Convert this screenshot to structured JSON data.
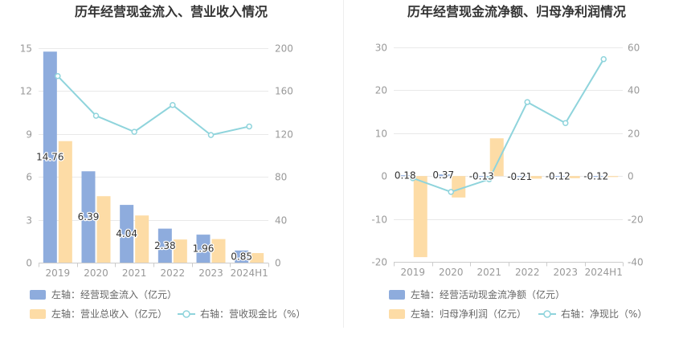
{
  "chart_data": [
    {
      "type": "bar",
      "title": "历年经营现金流入、营业收入情况",
      "categories": [
        "2019",
        "2020",
        "2021",
        "2022",
        "2023",
        "2024H1"
      ],
      "y_left": {
        "ticks": [
          0,
          3,
          6,
          9,
          12,
          15
        ],
        "ylim": [
          0,
          15
        ]
      },
      "y_right": {
        "ticks": [
          0,
          40,
          80,
          120,
          160,
          200
        ],
        "ylim": [
          0,
          200
        ]
      },
      "grid": true,
      "legend_position": "bottom-left",
      "series": [
        {
          "name": "左轴：经营现金流入（亿元）",
          "type": "bar",
          "axis": "left",
          "color": "#8EACDD",
          "data_labels": true,
          "values": [
            14.76,
            6.39,
            4.04,
            2.38,
            1.96,
            0.85
          ]
        },
        {
          "name": "左轴：营业总收入（亿元）",
          "type": "bar",
          "axis": "left",
          "color": "#FDDCA6",
          "data_labels": false,
          "values": [
            8.5,
            4.65,
            3.3,
            1.62,
            1.65,
            0.67
          ]
        },
        {
          "name": "右轴：营收现金比（%）",
          "type": "line",
          "axis": "right",
          "color": "#8FD4DC",
          "values": [
            174,
            137,
            122,
            147,
            119,
            127
          ]
        }
      ]
    },
    {
      "type": "bar",
      "title": "历年经营现金流净额、归母净利润情况",
      "categories": [
        "2019",
        "2020",
        "2021",
        "2022",
        "2023",
        "2024H1"
      ],
      "y_left": {
        "ticks": [
          -20,
          -10,
          0,
          10,
          20,
          30
        ],
        "ylim": [
          -20,
          30
        ]
      },
      "y_right": {
        "ticks": [
          -40,
          -20,
          0,
          20,
          40,
          60
        ],
        "ylim": [
          -40,
          60
        ]
      },
      "grid": true,
      "legend_position": "bottom-left",
      "series": [
        {
          "name": "左轴：经营活动现金流净额（亿元）",
          "type": "bar",
          "axis": "left",
          "color": "#8EACDD",
          "data_labels": true,
          "values": [
            0.18,
            0.37,
            -0.13,
            -0.21,
            -0.12,
            -0.12
          ]
        },
        {
          "name": "左轴：归母净利润（亿元）",
          "type": "bar",
          "axis": "left",
          "color": "#FDDCA6",
          "data_labels": false,
          "values": [
            -18.9,
            -5.0,
            8.8,
            -0.6,
            -0.5,
            -0.22
          ]
        },
        {
          "name": "右轴：净现比（%）",
          "type": "line",
          "axis": "right",
          "color": "#8FD4DC",
          "values": [
            -1,
            -7.4,
            -1.5,
            34.5,
            24.7,
            54.5
          ]
        }
      ]
    }
  ]
}
